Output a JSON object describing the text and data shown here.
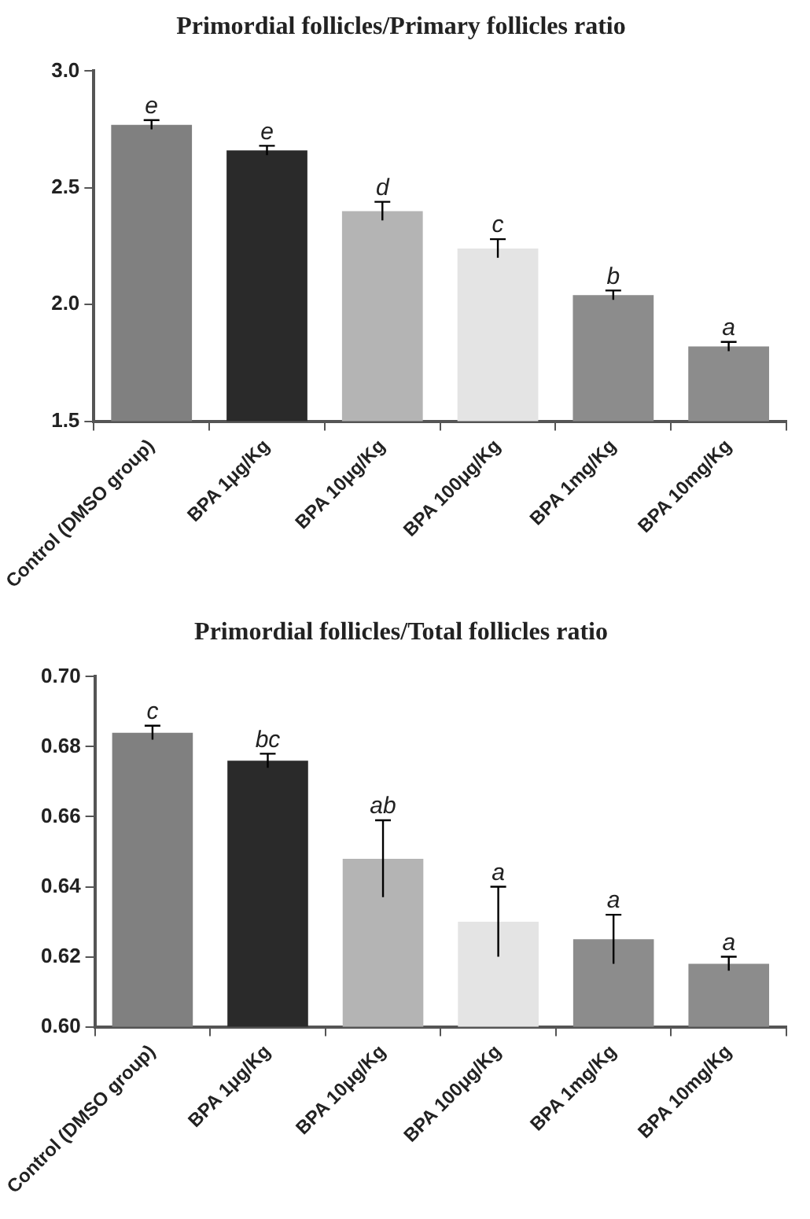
{
  "chart_data": [
    {
      "type": "bar",
      "title": "Primordial follicles/Primary follicles ratio",
      "categories": [
        "Control (DMSO group)",
        "BPA 1μg/Kg",
        "BPA 10μg/Kg",
        "BPA 100μg/Kg",
        "BPA 1mg/Kg",
        "BPA 10mg/Kg"
      ],
      "values": [
        2.77,
        2.66,
        2.4,
        2.24,
        2.04,
        1.82
      ],
      "errors": [
        0.02,
        0.02,
        0.04,
        0.04,
        0.02,
        0.02
      ],
      "colors": [
        "#808080",
        "#2a2a2a",
        "#b4b4b4",
        "#e4e4e4",
        "#8c8c8c",
        "#8c8c8c"
      ],
      "ylim": [
        1.5,
        3.0
      ],
      "yticks": [
        {
          "value": 1.5,
          "label": "1.5"
        },
        {
          "value": 2.0,
          "label": "2.0"
        },
        {
          "value": 2.5,
          "label": "2.5"
        },
        {
          "value": 3.0,
          "label": "3.0"
        }
      ],
      "grid": false,
      "legend": false,
      "annotations": [
        {
          "text": "e",
          "x": "Control (DMSO group)",
          "y": 2.79
        },
        {
          "text": "e",
          "x": "BPA 1μg/Kg",
          "y": 2.68
        },
        {
          "text": "d",
          "x": "BPA 10μg/Kg",
          "y": 2.44
        },
        {
          "text": "c",
          "x": "BPA 100μg/Kg",
          "y": 2.28
        },
        {
          "text": "b",
          "x": "BPA 1mg/Kg",
          "y": 2.06
        },
        {
          "text": "a",
          "x": "BPA 10mg/Kg",
          "y": 1.84
        }
      ]
    },
    {
      "type": "bar",
      "title": "Primordial follicles/Total follicles ratio",
      "categories": [
        "Control (DMSO group)",
        "BPA 1μg/Kg",
        "BPA 10μg/Kg",
        "BPA 100μg/Kg",
        "BPA 1mg/Kg",
        "BPA 10mg/Kg"
      ],
      "values": [
        0.684,
        0.676,
        0.648,
        0.63,
        0.625,
        0.618
      ],
      "errors": [
        0.002,
        0.002,
        0.011,
        0.01,
        0.007,
        0.002
      ],
      "colors": [
        "#808080",
        "#2a2a2a",
        "#b4b4b4",
        "#e4e4e4",
        "#8c8c8c",
        "#8c8c8c"
      ],
      "ylim": [
        0.6,
        0.7
      ],
      "yticks": [
        {
          "value": 0.6,
          "label": "0.60"
        },
        {
          "value": 0.62,
          "label": "0.62"
        },
        {
          "value": 0.64,
          "label": "0.64"
        },
        {
          "value": 0.66,
          "label": "0.66"
        },
        {
          "value": 0.68,
          "label": "0.68"
        },
        {
          "value": 0.7,
          "label": "0.70"
        }
      ],
      "grid": false,
      "legend": false,
      "annotations": [
        {
          "text": "c",
          "x": "Control (DMSO group)",
          "y": 0.686
        },
        {
          "text": "bc",
          "x": "BPA 1μg/Kg",
          "y": 0.678
        },
        {
          "text": "ab",
          "x": "BPA 10μg/Kg",
          "y": 0.659
        },
        {
          "text": "a",
          "x": "BPA 100μg/Kg",
          "y": 0.64
        },
        {
          "text": "a",
          "x": "BPA 1mg/Kg",
          "y": 0.632
        },
        {
          "text": "a",
          "x": "BPA 10mg/Kg",
          "y": 0.62
        }
      ]
    }
  ]
}
